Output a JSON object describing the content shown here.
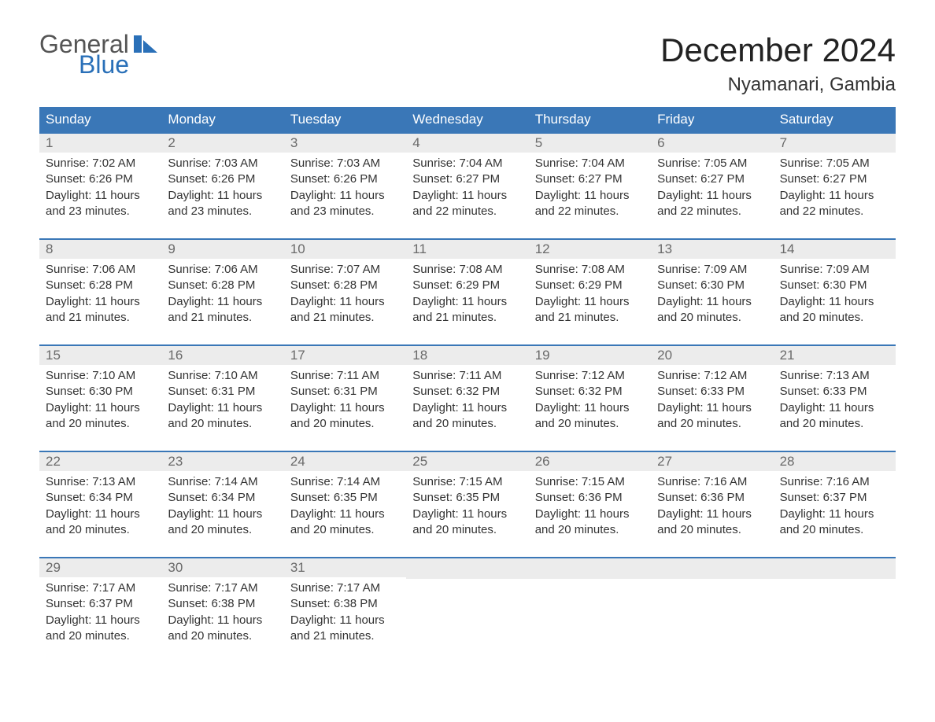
{
  "brand": {
    "text1": "General",
    "text2": "Blue",
    "flag_color": "#2a70b8"
  },
  "title": "December 2024",
  "location": "Nyamanari, Gambia",
  "colors": {
    "header_bg": "#3a77b7",
    "header_text": "#ffffff",
    "daynum_bg": "#ececec",
    "daynum_text": "#6a6a6a",
    "body_text": "#333333",
    "border": "#3a77b7",
    "page_bg": "#ffffff"
  },
  "type": "calendar-table",
  "day_headers": [
    "Sunday",
    "Monday",
    "Tuesday",
    "Wednesday",
    "Thursday",
    "Friday",
    "Saturday"
  ],
  "weeks": [
    [
      {
        "n": "1",
        "sr": "Sunrise: 7:02 AM",
        "ss": "Sunset: 6:26 PM",
        "d1": "Daylight: 11 hours",
        "d2": "and 23 minutes."
      },
      {
        "n": "2",
        "sr": "Sunrise: 7:03 AM",
        "ss": "Sunset: 6:26 PM",
        "d1": "Daylight: 11 hours",
        "d2": "and 23 minutes."
      },
      {
        "n": "3",
        "sr": "Sunrise: 7:03 AM",
        "ss": "Sunset: 6:26 PM",
        "d1": "Daylight: 11 hours",
        "d2": "and 23 minutes."
      },
      {
        "n": "4",
        "sr": "Sunrise: 7:04 AM",
        "ss": "Sunset: 6:27 PM",
        "d1": "Daylight: 11 hours",
        "d2": "and 22 minutes."
      },
      {
        "n": "5",
        "sr": "Sunrise: 7:04 AM",
        "ss": "Sunset: 6:27 PM",
        "d1": "Daylight: 11 hours",
        "d2": "and 22 minutes."
      },
      {
        "n": "6",
        "sr": "Sunrise: 7:05 AM",
        "ss": "Sunset: 6:27 PM",
        "d1": "Daylight: 11 hours",
        "d2": "and 22 minutes."
      },
      {
        "n": "7",
        "sr": "Sunrise: 7:05 AM",
        "ss": "Sunset: 6:27 PM",
        "d1": "Daylight: 11 hours",
        "d2": "and 22 minutes."
      }
    ],
    [
      {
        "n": "8",
        "sr": "Sunrise: 7:06 AM",
        "ss": "Sunset: 6:28 PM",
        "d1": "Daylight: 11 hours",
        "d2": "and 21 minutes."
      },
      {
        "n": "9",
        "sr": "Sunrise: 7:06 AM",
        "ss": "Sunset: 6:28 PM",
        "d1": "Daylight: 11 hours",
        "d2": "and 21 minutes."
      },
      {
        "n": "10",
        "sr": "Sunrise: 7:07 AM",
        "ss": "Sunset: 6:28 PM",
        "d1": "Daylight: 11 hours",
        "d2": "and 21 minutes."
      },
      {
        "n": "11",
        "sr": "Sunrise: 7:08 AM",
        "ss": "Sunset: 6:29 PM",
        "d1": "Daylight: 11 hours",
        "d2": "and 21 minutes."
      },
      {
        "n": "12",
        "sr": "Sunrise: 7:08 AM",
        "ss": "Sunset: 6:29 PM",
        "d1": "Daylight: 11 hours",
        "d2": "and 21 minutes."
      },
      {
        "n": "13",
        "sr": "Sunrise: 7:09 AM",
        "ss": "Sunset: 6:30 PM",
        "d1": "Daylight: 11 hours",
        "d2": "and 20 minutes."
      },
      {
        "n": "14",
        "sr": "Sunrise: 7:09 AM",
        "ss": "Sunset: 6:30 PM",
        "d1": "Daylight: 11 hours",
        "d2": "and 20 minutes."
      }
    ],
    [
      {
        "n": "15",
        "sr": "Sunrise: 7:10 AM",
        "ss": "Sunset: 6:30 PM",
        "d1": "Daylight: 11 hours",
        "d2": "and 20 minutes."
      },
      {
        "n": "16",
        "sr": "Sunrise: 7:10 AM",
        "ss": "Sunset: 6:31 PM",
        "d1": "Daylight: 11 hours",
        "d2": "and 20 minutes."
      },
      {
        "n": "17",
        "sr": "Sunrise: 7:11 AM",
        "ss": "Sunset: 6:31 PM",
        "d1": "Daylight: 11 hours",
        "d2": "and 20 minutes."
      },
      {
        "n": "18",
        "sr": "Sunrise: 7:11 AM",
        "ss": "Sunset: 6:32 PM",
        "d1": "Daylight: 11 hours",
        "d2": "and 20 minutes."
      },
      {
        "n": "19",
        "sr": "Sunrise: 7:12 AM",
        "ss": "Sunset: 6:32 PM",
        "d1": "Daylight: 11 hours",
        "d2": "and 20 minutes."
      },
      {
        "n": "20",
        "sr": "Sunrise: 7:12 AM",
        "ss": "Sunset: 6:33 PM",
        "d1": "Daylight: 11 hours",
        "d2": "and 20 minutes."
      },
      {
        "n": "21",
        "sr": "Sunrise: 7:13 AM",
        "ss": "Sunset: 6:33 PM",
        "d1": "Daylight: 11 hours",
        "d2": "and 20 minutes."
      }
    ],
    [
      {
        "n": "22",
        "sr": "Sunrise: 7:13 AM",
        "ss": "Sunset: 6:34 PM",
        "d1": "Daylight: 11 hours",
        "d2": "and 20 minutes."
      },
      {
        "n": "23",
        "sr": "Sunrise: 7:14 AM",
        "ss": "Sunset: 6:34 PM",
        "d1": "Daylight: 11 hours",
        "d2": "and 20 minutes."
      },
      {
        "n": "24",
        "sr": "Sunrise: 7:14 AM",
        "ss": "Sunset: 6:35 PM",
        "d1": "Daylight: 11 hours",
        "d2": "and 20 minutes."
      },
      {
        "n": "25",
        "sr": "Sunrise: 7:15 AM",
        "ss": "Sunset: 6:35 PM",
        "d1": "Daylight: 11 hours",
        "d2": "and 20 minutes."
      },
      {
        "n": "26",
        "sr": "Sunrise: 7:15 AM",
        "ss": "Sunset: 6:36 PM",
        "d1": "Daylight: 11 hours",
        "d2": "and 20 minutes."
      },
      {
        "n": "27",
        "sr": "Sunrise: 7:16 AM",
        "ss": "Sunset: 6:36 PM",
        "d1": "Daylight: 11 hours",
        "d2": "and 20 minutes."
      },
      {
        "n": "28",
        "sr": "Sunrise: 7:16 AM",
        "ss": "Sunset: 6:37 PM",
        "d1": "Daylight: 11 hours",
        "d2": "and 20 minutes."
      }
    ],
    [
      {
        "n": "29",
        "sr": "Sunrise: 7:17 AM",
        "ss": "Sunset: 6:37 PM",
        "d1": "Daylight: 11 hours",
        "d2": "and 20 minutes."
      },
      {
        "n": "30",
        "sr": "Sunrise: 7:17 AM",
        "ss": "Sunset: 6:38 PM",
        "d1": "Daylight: 11 hours",
        "d2": "and 20 minutes."
      },
      {
        "n": "31",
        "sr": "Sunrise: 7:17 AM",
        "ss": "Sunset: 6:38 PM",
        "d1": "Daylight: 11 hours",
        "d2": "and 21 minutes."
      },
      null,
      null,
      null,
      null
    ]
  ]
}
